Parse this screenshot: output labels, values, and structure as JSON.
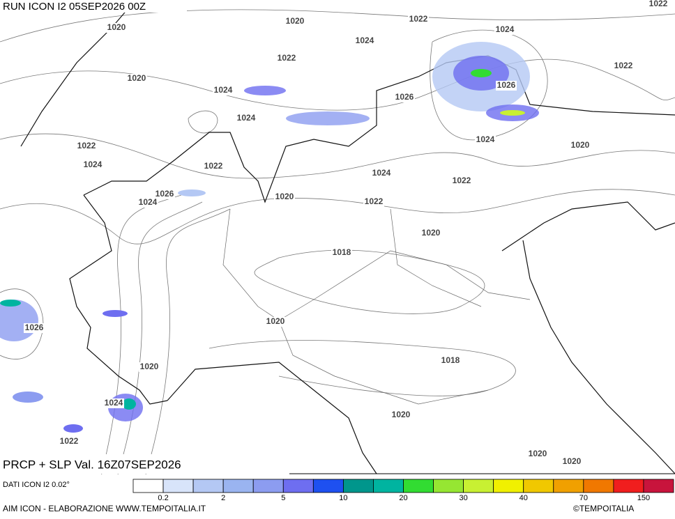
{
  "header": {
    "run": "RUN ICON I2 05SEP2026 00Z"
  },
  "isobars": [
    "1020",
    "1020",
    "1022",
    "1024",
    "1022",
    "1024",
    "1022",
    "1020",
    "1024",
    "1026",
    "1026",
    "1022",
    "1024",
    "1024",
    "1020",
    "1022",
    "1024",
    "1022",
    "1024",
    "1022",
    "1026",
    "1024",
    "1020",
    "1022",
    "1020",
    "1018",
    "1026",
    "1020",
    "1020",
    "1018",
    "1024",
    "1022",
    "1020",
    "1020",
    "1020"
  ],
  "footer": {
    "title": "PRCP + SLP Val. 16Z07SEP2026",
    "source": "DATI ICON I2 0.02°",
    "credit": "AIM ICON - ELABORAZIONE WWW.TEMPOITALIA.IT",
    "copyright": "©TEMPOITALIA"
  },
  "legend": {
    "colors": [
      "#ffffff",
      "#d8e4fa",
      "#b4c8f4",
      "#9ab4f0",
      "#8c9cf0",
      "#6e6ef0",
      "#1e50f0",
      "#00968c",
      "#00b4a0",
      "#32dc32",
      "#96e632",
      "#c8f032",
      "#f0f000",
      "#f0c800",
      "#f0a000",
      "#f07800",
      "#f01e1e",
      "#c8143c"
    ],
    "labels": [
      "0.2",
      "2",
      "5",
      "10",
      "20",
      "30",
      "40",
      "70",
      "150"
    ]
  }
}
